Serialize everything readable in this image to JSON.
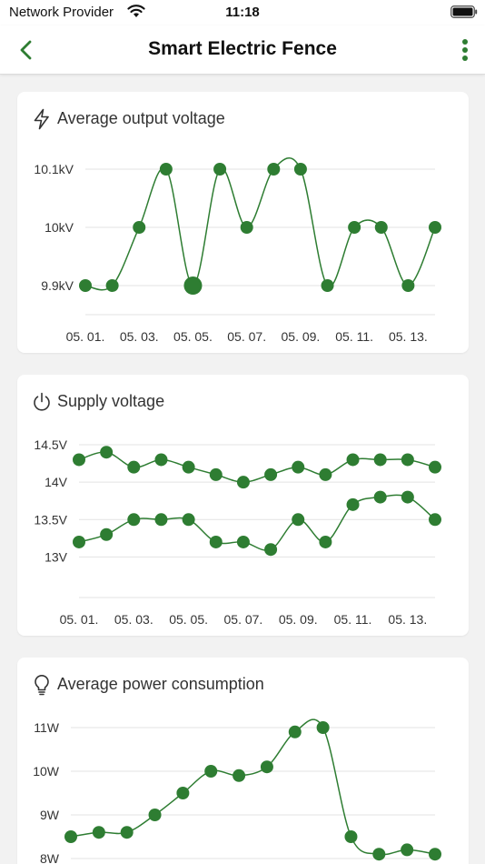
{
  "status_bar": {
    "carrier": "Network Provider",
    "time": "11:18",
    "wifi_icon": "wifi-icon",
    "battery_icon": "battery-icon"
  },
  "nav": {
    "title": "Smart Electric Fence",
    "back_icon": "chevron-left-icon",
    "more_icon": "more-vertical-icon",
    "accent_color": "#2e7d32"
  },
  "chart_data": [
    {
      "type": "line",
      "title": "Average output voltage",
      "icon": "lightning-icon",
      "categories": [
        "05. 01.",
        "05. 02.",
        "05. 03.",
        "05. 04.",
        "05. 05.",
        "05. 06.",
        "05. 07.",
        "05. 08.",
        "05. 09.",
        "05. 10.",
        "05. 11.",
        "05. 12.",
        "05. 13.",
        "05. 14."
      ],
      "x_tick_labels": [
        "05. 01.",
        "05. 03.",
        "05. 05.",
        "05. 07.",
        "05. 09.",
        "05. 11.",
        "05. 13."
      ],
      "y_ticks": [
        {
          "value": 9.9,
          "label": "9.9kV"
        },
        {
          "value": 10.0,
          "label": "10kV"
        },
        {
          "value": 10.1,
          "label": "10.1kV"
        }
      ],
      "ylim": [
        9.9,
        10.1
      ],
      "grid": true,
      "series": [
        {
          "color": "#2e7d32",
          "values": [
            9.9,
            9.9,
            10.0,
            10.1,
            9.9,
            10.1,
            10.0,
            10.1,
            10.1,
            9.9,
            10.0,
            10.0,
            9.9,
            10.0
          ]
        }
      ]
    },
    {
      "type": "line",
      "title": "Supply voltage",
      "icon": "power-icon",
      "categories": [
        "05. 01.",
        "05. 02.",
        "05. 03.",
        "05. 04.",
        "05. 05.",
        "05. 06.",
        "05. 07.",
        "05. 08.",
        "05. 09.",
        "05. 10.",
        "05. 11.",
        "05. 12.",
        "05. 13.",
        "05. 14."
      ],
      "x_tick_labels": [
        "05. 01.",
        "05. 03.",
        "05. 05.",
        "05. 07.",
        "05. 09.",
        "05. 11.",
        "05. 13."
      ],
      "y_ticks": [
        {
          "value": 13.0,
          "label": "13V"
        },
        {
          "value": 13.5,
          "label": "13.5V"
        },
        {
          "value": 14.0,
          "label": "14V"
        },
        {
          "value": 14.5,
          "label": "14.5V"
        }
      ],
      "ylim": [
        12.75,
        14.5
      ],
      "grid": true,
      "series": [
        {
          "color": "#2e7d32",
          "values": [
            14.3,
            14.4,
            14.2,
            14.3,
            14.2,
            14.1,
            14.0,
            14.1,
            14.2,
            14.1,
            14.3,
            14.3,
            14.3,
            14.2
          ]
        },
        {
          "color": "#2e7d32",
          "values": [
            13.2,
            13.3,
            13.5,
            13.5,
            13.5,
            13.2,
            13.2,
            13.1,
            13.5,
            13.2,
            13.7,
            13.8,
            13.8,
            13.5
          ]
        }
      ]
    },
    {
      "type": "line",
      "title": "Average power consumption",
      "icon": "lightbulb-icon",
      "categories": [
        "05. 01.",
        "05. 02.",
        "05. 03.",
        "05. 04.",
        "05. 05.",
        "05. 06.",
        "05. 07.",
        "05. 08.",
        "05. 09.",
        "05. 10.",
        "05. 11.",
        "05. 12.",
        "05. 13.",
        "05. 14."
      ],
      "x_tick_labels": [],
      "y_ticks": [
        {
          "value": 8,
          "label": "8W"
        },
        {
          "value": 9,
          "label": "9W"
        },
        {
          "value": 10,
          "label": "10W"
        },
        {
          "value": 11,
          "label": "11W"
        }
      ],
      "ylim": [
        8,
        11
      ],
      "grid": true,
      "series": [
        {
          "color": "#2e7d32",
          "values": [
            8.5,
            8.6,
            8.6,
            9.0,
            9.5,
            10.0,
            9.9,
            10.1,
            10.9,
            11.0,
            8.5,
            8.1,
            8.2,
            8.1
          ]
        }
      ]
    }
  ]
}
